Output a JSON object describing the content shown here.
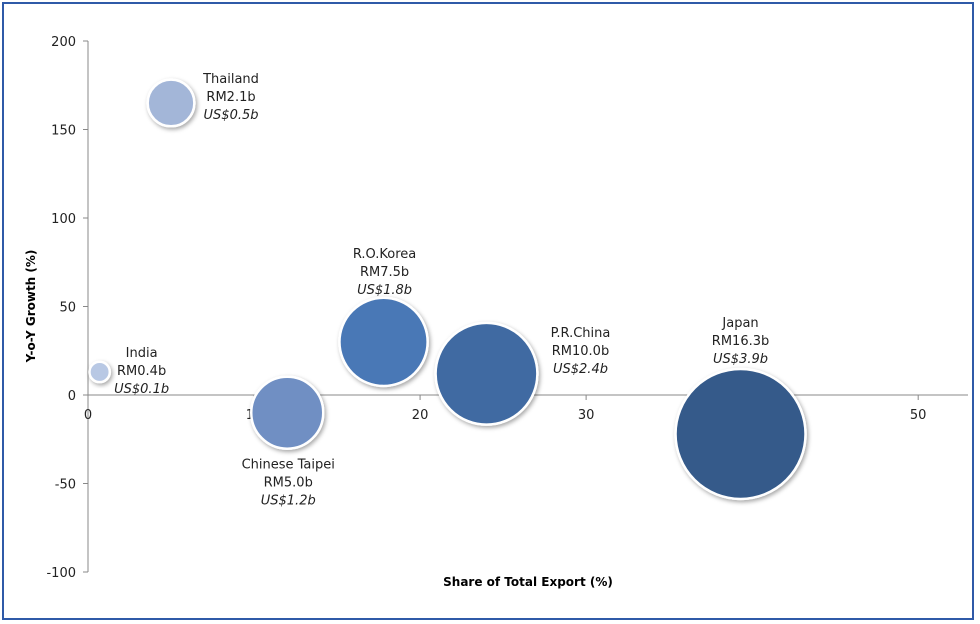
{
  "chart_data": {
    "type": "bubble",
    "xlabel": "Share of Total Export (%)",
    "ylabel": "Y-o-Y Growth (%)",
    "xlim": [
      0,
      53
    ],
    "ylim": [
      -100,
      200
    ],
    "xticks": [
      0,
      10,
      20,
      30,
      40,
      50
    ],
    "yticks": [
      200,
      150,
      100,
      50,
      0,
      -50,
      -100
    ],
    "grid": false,
    "points": [
      {
        "name": "Thailand",
        "x": 5.0,
        "y": 165,
        "rm": "RM2.1b",
        "usd": "US$0.5b",
        "size": 2.1,
        "color": "#a3b6d8",
        "label_pos": "right"
      },
      {
        "name": "India",
        "x": 0.7,
        "y": 13,
        "rm": "RM0.4b",
        "usd": "US$0.1b",
        "size": 0.4,
        "color": "#b8c8e4",
        "label_pos": "right"
      },
      {
        "name": "Chinese Taipei",
        "x": 12.0,
        "y": -10,
        "rm": "RM5.0b",
        "usd": "US$1.2b",
        "size": 5.0,
        "color": "#6f8fc3",
        "label_pos": "below"
      },
      {
        "name": "R.O.Korea",
        "x": 17.8,
        "y": 30,
        "rm": "RM7.5b",
        "usd": "US$1.8b",
        "size": 7.5,
        "color": "#4a78b6",
        "label_pos": "above"
      },
      {
        "name": "P.R.China",
        "x": 24.0,
        "y": 12,
        "rm": "RM10.0b",
        "usd": "US$2.4b",
        "size": 10.0,
        "color": "#3f6aa2",
        "label_pos": "right"
      },
      {
        "name": "Japan",
        "x": 39.3,
        "y": -22,
        "rm": "RM16.3b",
        "usd": "US$3.9b",
        "size": 16.3,
        "color": "#355a8a",
        "label_pos": "above"
      }
    ]
  }
}
